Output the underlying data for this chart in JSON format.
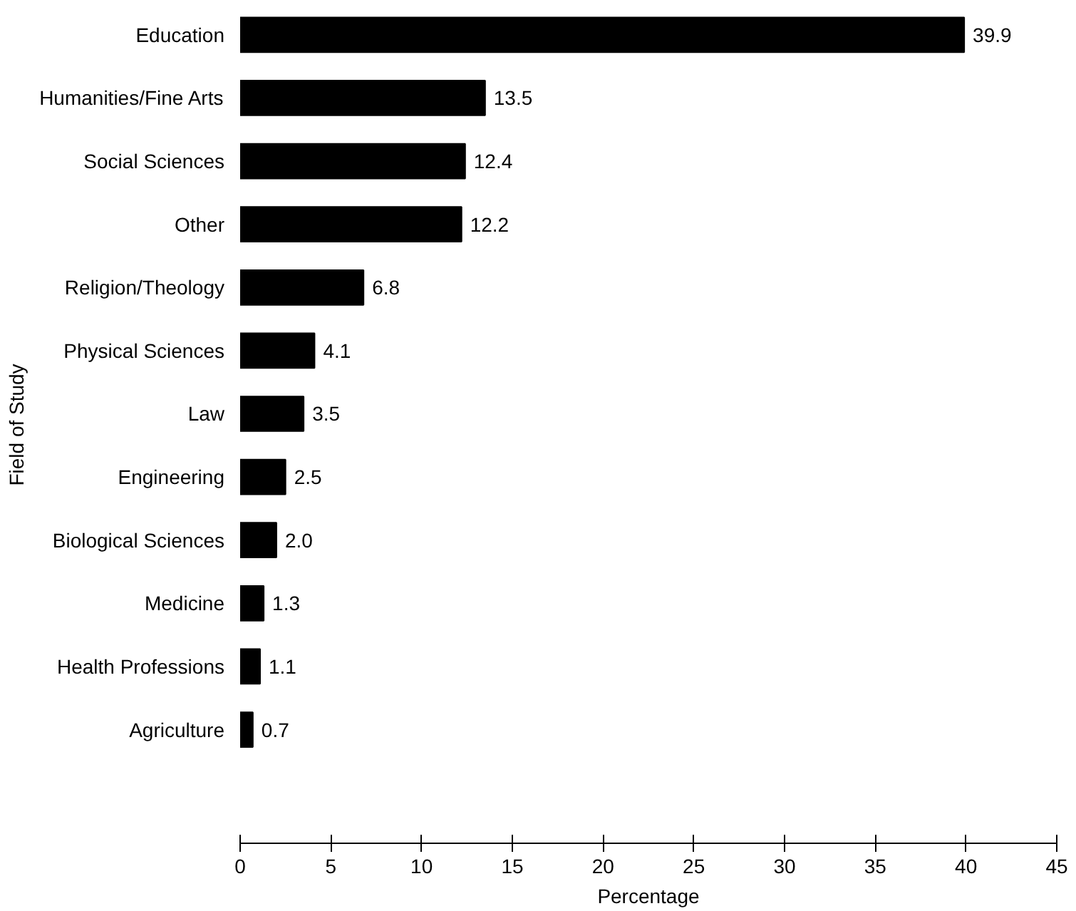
{
  "chart_data": {
    "type": "bar",
    "orientation": "horizontal",
    "xlabel": "Percentage",
    "ylabel": "Field of Study",
    "categories": [
      "Education",
      "Humanities/Fine Arts",
      "Social Sciences",
      "Other",
      "Religion/Theology",
      "Physical Sciences",
      "Law",
      "Engineering",
      "Biological Sciences",
      "Medicine",
      "Health Professions",
      "Agriculture"
    ],
    "values": [
      39.9,
      13.5,
      12.4,
      12.2,
      6.8,
      4.1,
      3.5,
      2.5,
      2.0,
      1.3,
      1.1,
      0.7
    ],
    "color": "#000000",
    "xlim": [
      0,
      45
    ],
    "xticks": [
      0,
      5,
      10,
      15,
      20,
      25,
      30,
      35,
      40,
      45
    ],
    "value_labels": [
      "39.9",
      "13.5",
      "12.4",
      "12.2",
      "6.8",
      "4.1",
      "3.5",
      "2.5",
      "2.0",
      "1.3",
      "1.1",
      "0.7"
    ],
    "grid": false
  }
}
